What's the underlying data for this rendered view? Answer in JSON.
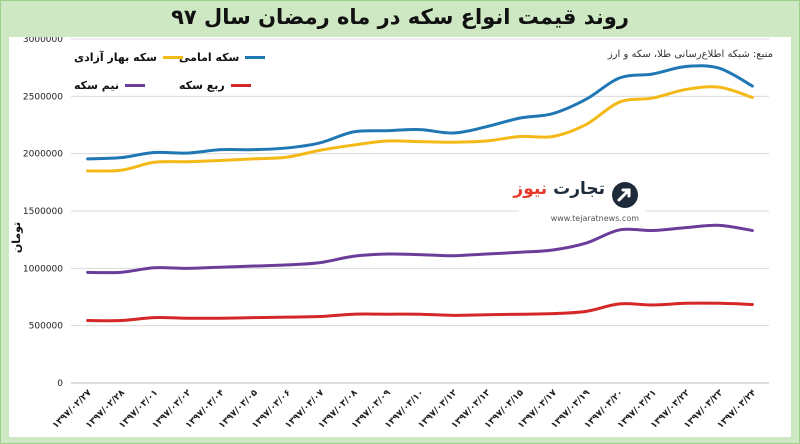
{
  "title": "روند قیمت انواع سکه در ماه رمضان سال ۹۷",
  "source": "منبع: شبکه اطلاع‌رسانی طلا، سکه و ارز",
  "watermark": {
    "name_part1": "تجارت",
    "name_part2": "نیوز",
    "url": "www.tejaratnews.com"
  },
  "colors": {
    "panel_bg": "#cfe8c4",
    "grid": "#d9d9d9",
    "axis_text": "#222222"
  },
  "chart_data": {
    "type": "line",
    "ylabel": "تومان",
    "ylim": [
      0,
      3000000
    ],
    "yticks": [
      0,
      500000,
      1000000,
      1500000,
      2000000,
      2500000,
      3000000
    ],
    "ytick_labels": [
      "0",
      "500000",
      "1000000",
      "1500000",
      "2000000",
      "2500000",
      "3000000"
    ],
    "categories": [
      "۱۳۹۷/۰۲/۲۷",
      "۱۳۹۷/۰۲/۲۸",
      "۱۳۹۷/۰۳/۰۱",
      "۱۳۹۷/۰۳/۰۲",
      "۱۳۹۷/۰۳/۰۴",
      "۱۳۹۷/۰۳/۰۵",
      "۱۳۹۷/۰۳/۰۶",
      "۱۳۹۷/۰۳/۰۷",
      "۱۳۹۷/۰۳/۰۸",
      "۱۳۹۷/۰۳/۰۹",
      "۱۳۹۷/۰۳/۱۰",
      "۱۳۹۷/۰۳/۱۲",
      "۱۳۹۷/۰۳/۱۳",
      "۱۳۹۷/۰۳/۱۵",
      "۱۳۹۷/۰۳/۱۷",
      "۱۳۹۷/۰۳/۱۹",
      "۱۳۹۷/۰۳/۲۰",
      "۱۳۹۷/۰۳/۲۱",
      "۱۳۹۷/۰۳/۲۲",
      "۱۳۹۷/۰۳/۲۳",
      "۱۳۹۷/۰۳/۲۴"
    ],
    "series": [
      {
        "name": "سکه امامی",
        "color": "#1f77b4",
        "values": [
          1955000,
          1965000,
          2010000,
          2005000,
          2035000,
          2035000,
          2050000,
          2095000,
          2190000,
          2200000,
          2210000,
          2180000,
          2235000,
          2310000,
          2350000,
          2475000,
          2660000,
          2695000,
          2760000,
          2745000,
          2590000
        ]
      },
      {
        "name": "سکه بهار آزادی",
        "color": "#f4b916",
        "values": [
          1850000,
          1855000,
          1925000,
          1930000,
          1940000,
          1955000,
          1970000,
          2030000,
          2075000,
          2110000,
          2105000,
          2100000,
          2110000,
          2150000,
          2150000,
          2255000,
          2450000,
          2485000,
          2560000,
          2580000,
          2490000
        ]
      },
      {
        "name": "نیم سکه",
        "color": "#6a3d9a",
        "values": [
          965000,
          965000,
          1005000,
          1000000,
          1010000,
          1020000,
          1030000,
          1050000,
          1105000,
          1125000,
          1120000,
          1110000,
          1125000,
          1140000,
          1160000,
          1220000,
          1335000,
          1330000,
          1355000,
          1375000,
          1330000
        ]
      },
      {
        "name": "ربع سکه",
        "color": "#d62728",
        "values": [
          545000,
          545000,
          570000,
          565000,
          565000,
          570000,
          575000,
          580000,
          600000,
          600000,
          600000,
          590000,
          595000,
          600000,
          605000,
          625000,
          690000,
          680000,
          695000,
          695000,
          685000
        ]
      }
    ]
  }
}
